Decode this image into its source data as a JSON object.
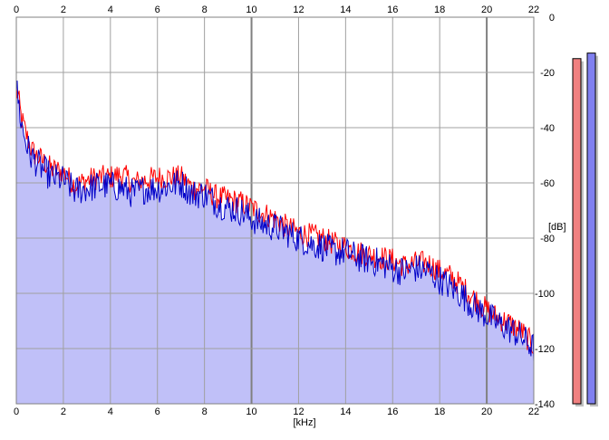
{
  "chart_data": {
    "type": "area",
    "xlabel": "[kHz]",
    "ylabel": "[dB]",
    "xlim": [
      0,
      22
    ],
    "ylim": [
      -140,
      0
    ],
    "x_ticks": [
      "0",
      "2",
      "4",
      "6",
      "8",
      "10",
      "12",
      "14",
      "16",
      "18",
      "20",
      "22"
    ],
    "y_ticks": [
      "0",
      "-20",
      "-40",
      "-60",
      "-80",
      "-100",
      "-120",
      "-140"
    ],
    "grid": true,
    "colors": {
      "fill": "#c0c0f8",
      "left_channel": "#ff0000",
      "right_channel": "#0000c8",
      "grid": "#a0a0a0",
      "major_grid": "#808080"
    },
    "series": [
      {
        "color": "#ff0000",
        "x": [
          0,
          0.1,
          0.2,
          0.4,
          0.6,
          0.8,
          1,
          1.5,
          2,
          2.5,
          3,
          3.5,
          4,
          4.5,
          5,
          5.5,
          6,
          6.5,
          7,
          7.5,
          8,
          8.5,
          9,
          9.5,
          10,
          10.5,
          11,
          11.5,
          12,
          12.5,
          13,
          13.5,
          14,
          14.5,
          15,
          15.5,
          16,
          16.5,
          17,
          17.5,
          18,
          18.5,
          19,
          19.5,
          20,
          20.5,
          21,
          21.5,
          22
        ],
        "values": [
          -26,
          -30,
          -36,
          -42,
          -47,
          -50,
          -51,
          -55,
          -56,
          -61,
          -59,
          -58,
          -58,
          -57,
          -60,
          -59,
          -58,
          -58,
          -58,
          -62,
          -62,
          -65,
          -66,
          -67,
          -69,
          -71,
          -73,
          -76,
          -78,
          -79,
          -80,
          -82,
          -83,
          -85,
          -86,
          -87,
          -88,
          -90,
          -89,
          -89,
          -92,
          -94,
          -98,
          -102,
          -106,
          -109,
          -111,
          -114,
          -119
        ]
      },
      {
        "color": "#0000c8",
        "x": [
          0,
          0.1,
          0.2,
          0.4,
          0.6,
          0.8,
          1,
          1.5,
          2,
          2.5,
          3,
          3.5,
          4,
          4.5,
          5,
          5.5,
          6,
          6.5,
          7,
          7.5,
          8,
          8.5,
          9,
          9.5,
          10,
          10.5,
          11,
          11.5,
          12,
          12.5,
          13,
          13.5,
          14,
          14.5,
          15,
          15.5,
          16,
          16.5,
          17,
          17.5,
          18,
          18.5,
          19,
          19.5,
          20,
          20.5,
          21,
          21.5,
          22
        ],
        "values": [
          -25,
          -31,
          -38,
          -45,
          -50,
          -52,
          -54,
          -58,
          -59,
          -63,
          -62,
          -61,
          -61,
          -62,
          -64,
          -62,
          -62,
          -61,
          -60,
          -64,
          -64,
          -67,
          -69,
          -70,
          -73,
          -75,
          -76,
          -78,
          -80,
          -82,
          -83,
          -85,
          -85,
          -87,
          -88,
          -89,
          -91,
          -92,
          -91,
          -92,
          -95,
          -98,
          -101,
          -105,
          -108,
          -111,
          -113,
          -116,
          -120
        ]
      }
    ],
    "level_meters": [
      {
        "color": "#f08080",
        "value_db": -15
      },
      {
        "color": "#8080f0",
        "value_db": -13
      }
    ]
  }
}
